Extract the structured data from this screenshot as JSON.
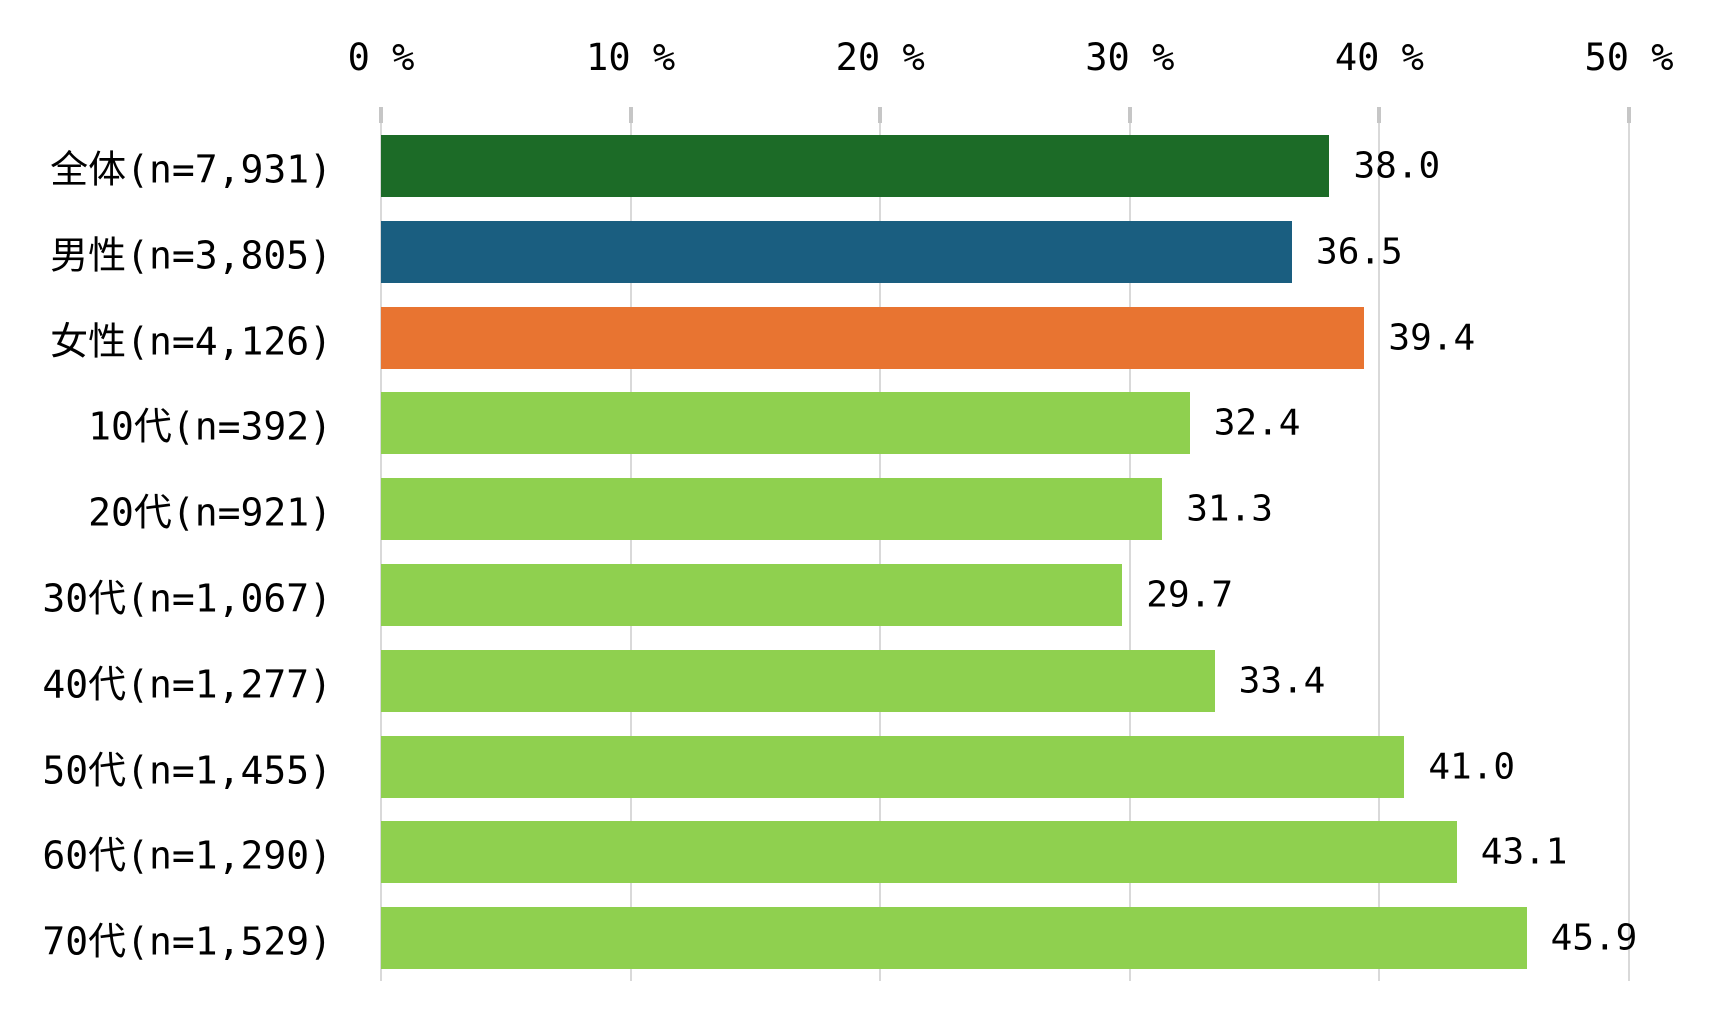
{
  "chart_data": {
    "type": "bar",
    "orientation": "horizontal",
    "title": "",
    "xlabel": "",
    "ylabel": "",
    "xlim": [
      0,
      50
    ],
    "x_tick_labels": [
      "0 %",
      "10 %",
      "20 %",
      "30 %",
      "40 %",
      "50 %"
    ],
    "x_tick_values": [
      0,
      10,
      20,
      30,
      40,
      50
    ],
    "grid": true,
    "legend": false,
    "categories": [
      "全体(n=7,931)",
      "男性(n=3,805)",
      "女性(n=4,126)",
      "10代(n=392)",
      "20代(n=921)",
      "30代(n=1,067)",
      "40代(n=1,277)",
      "50代(n=1,455)",
      "60代(n=1,290)",
      "70代(n=1,529)"
    ],
    "values": [
      38.0,
      36.5,
      39.4,
      32.4,
      31.3,
      29.7,
      33.4,
      41.0,
      43.1,
      45.9
    ],
    "value_labels": [
      "38.0",
      "36.5",
      "39.4",
      "32.4",
      "31.3",
      "29.7",
      "33.4",
      "41.0",
      "43.1",
      "45.9"
    ],
    "bar_colors": [
      "#1C6B27",
      "#1A5E80",
      "#E87431",
      "#8FD04F",
      "#8FD04F",
      "#8FD04F",
      "#8FD04F",
      "#8FD04F",
      "#8FD04F",
      "#8FD04F"
    ]
  },
  "colors": {
    "grid_line": "#D9D9D9",
    "tick_mark": "#C6C6C6",
    "text": "#000000",
    "background": "#FFFFFF"
  }
}
